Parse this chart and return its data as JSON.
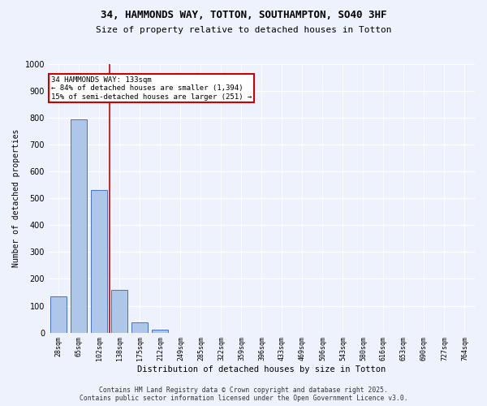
{
  "title1": "34, HAMMONDS WAY, TOTTON, SOUTHAMPTON, SO40 3HF",
  "title2": "Size of property relative to detached houses in Totton",
  "xlabel": "Distribution of detached houses by size in Totton",
  "ylabel": "Number of detached properties",
  "categories": [
    "28sqm",
    "65sqm",
    "102sqm",
    "138sqm",
    "175sqm",
    "212sqm",
    "249sqm",
    "285sqm",
    "322sqm",
    "359sqm",
    "396sqm",
    "433sqm",
    "469sqm",
    "506sqm",
    "543sqm",
    "580sqm",
    "616sqm",
    "653sqm",
    "690sqm",
    "727sqm",
    "764sqm"
  ],
  "values": [
    135,
    795,
    530,
    160,
    38,
    12,
    0,
    0,
    0,
    0,
    0,
    0,
    0,
    0,
    0,
    0,
    0,
    0,
    0,
    0,
    0
  ],
  "bar_color": "#aec6e8",
  "bar_edge_color": "#4472c4",
  "vline_x": 2.5,
  "vline_color": "#cc0000",
  "annotation_line1": "34 HAMMONDS WAY: 133sqm",
  "annotation_line2": "← 84% of detached houses are smaller (1,394)",
  "annotation_line3": "15% of semi-detached houses are larger (251) →",
  "annotation_box_color": "#cc0000",
  "ylim": [
    0,
    1000
  ],
  "yticks": [
    0,
    100,
    200,
    300,
    400,
    500,
    600,
    700,
    800,
    900,
    1000
  ],
  "footer1": "Contains HM Land Registry data © Crown copyright and database right 2025.",
  "footer2": "Contains public sector information licensed under the Open Government Licence v3.0.",
  "bg_color": "#eef2fc",
  "plot_bg_color": "#eef2fc"
}
